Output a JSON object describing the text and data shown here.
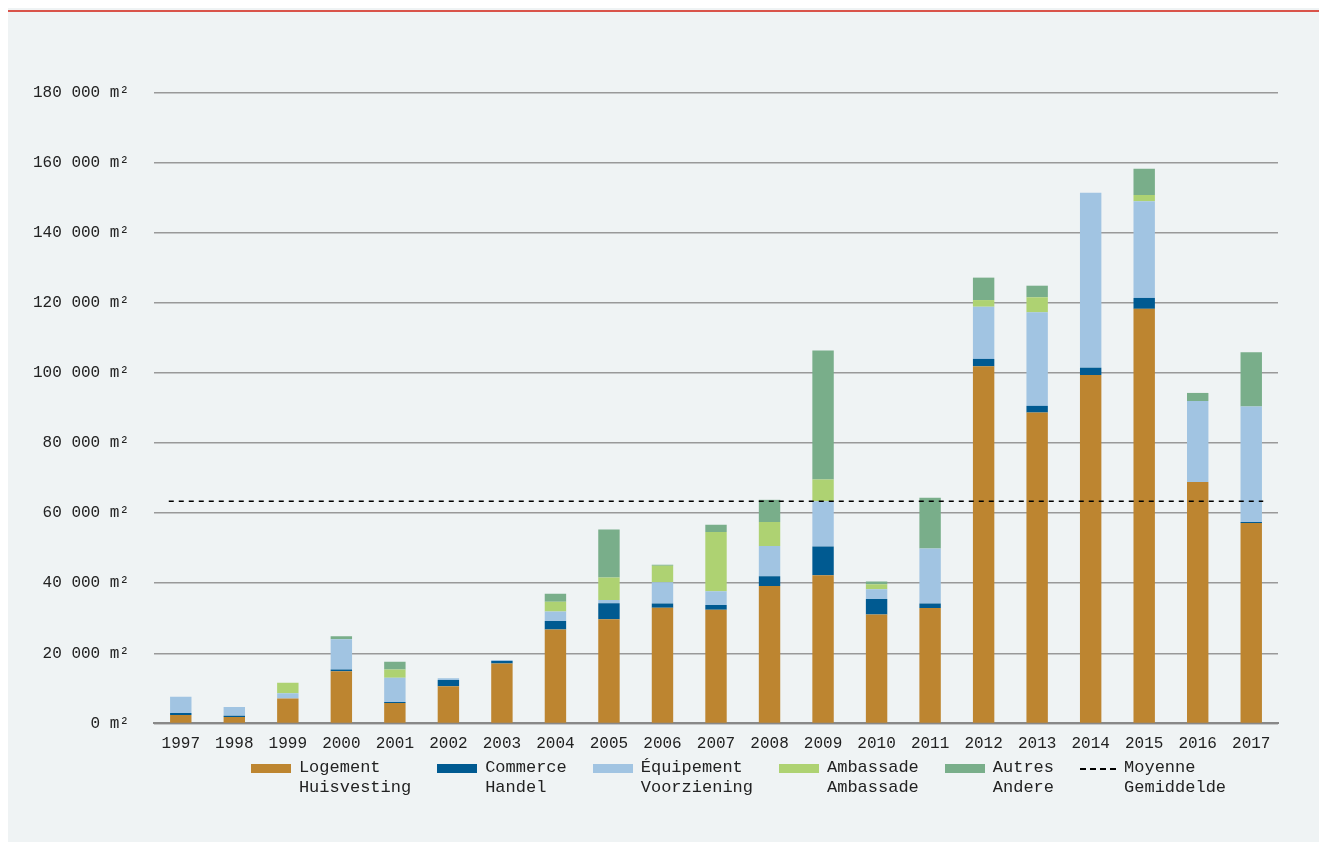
{
  "chart_data": {
    "type": "bar",
    "stacked": true,
    "categories": [
      "1997",
      "1998",
      "1999",
      "2000",
      "2001",
      "2002",
      "2003",
      "2004",
      "2005",
      "2006",
      "2007",
      "2008",
      "2009",
      "2010",
      "2011",
      "2012",
      "2013",
      "2014",
      "2015",
      "2016",
      "2017"
    ],
    "series": [
      {
        "name": "Logement\nHuisvesting",
        "color": "#bd8530",
        "values": [
          2400,
          1800,
          7100,
          14900,
          5800,
          10600,
          17100,
          26800,
          29700,
          33000,
          32400,
          39200,
          42300,
          31100,
          32900,
          101900,
          88700,
          99400,
          118300,
          68900,
          57200
        ]
      },
      {
        "name": "Commerce\nHandel",
        "color": "#005a91",
        "values": [
          600,
          400,
          null,
          500,
          300,
          1800,
          700,
          2400,
          4600,
          1200,
          1400,
          2800,
          8200,
          4400,
          1300,
          2100,
          1900,
          2100,
          3100,
          null,
          300
        ]
      },
      {
        "name": "Équipement\nVoorziening",
        "color": "#a1c4e2",
        "values": [
          4600,
          2500,
          1500,
          8600,
          6900,
          500,
          300,
          2700,
          900,
          6100,
          3900,
          8600,
          12900,
          2800,
          15700,
          14900,
          26700,
          49900,
          27600,
          23100,
          32900
        ]
      },
      {
        "name": "Ambassade\nAmbassade",
        "color": "#aed272",
        "values": [
          null,
          null,
          3000,
          null,
          2400,
          null,
          null,
          2800,
          6400,
          4700,
          16900,
          6900,
          6200,
          1400,
          null,
          1900,
          4300,
          null,
          1800,
          null,
          null
        ]
      },
      {
        "name": "Autres\nAndere",
        "color": "#79ae8a",
        "values": [
          null,
          null,
          null,
          900,
          2200,
          null,
          null,
          2300,
          13700,
          300,
          2100,
          6300,
          36800,
          800,
          14500,
          6400,
          3300,
          null,
          7500,
          2300,
          15500
        ]
      }
    ],
    "ylim": [
      0,
      180000
    ],
    "yticks": [
      {
        "value": 0,
        "label": "0 m²"
      },
      {
        "value": 20000,
        "label": "20 000 m²"
      },
      {
        "value": 40000,
        "label": "40 000 m²"
      },
      {
        "value": 60000,
        "label": "60 000 m²"
      },
      {
        "value": 80000,
        "label": "80 000 m²"
      },
      {
        "value": 100000,
        "label": "100 000 m²"
      },
      {
        "value": 120000,
        "label": "120 000 m²"
      },
      {
        "value": 140000,
        "label": "140 000 m²"
      },
      {
        "value": 160000,
        "label": "160 000 m²"
      },
      {
        "value": 180000,
        "label": "180 000 m²"
      }
    ],
    "grid": "y",
    "legend": "bottom",
    "ref_lines": [
      {
        "axis": "y",
        "value": 63400,
        "label": "Moyenne\nGemiddelde",
        "color": "#000000",
        "line_style": "dashed"
      }
    ]
  }
}
